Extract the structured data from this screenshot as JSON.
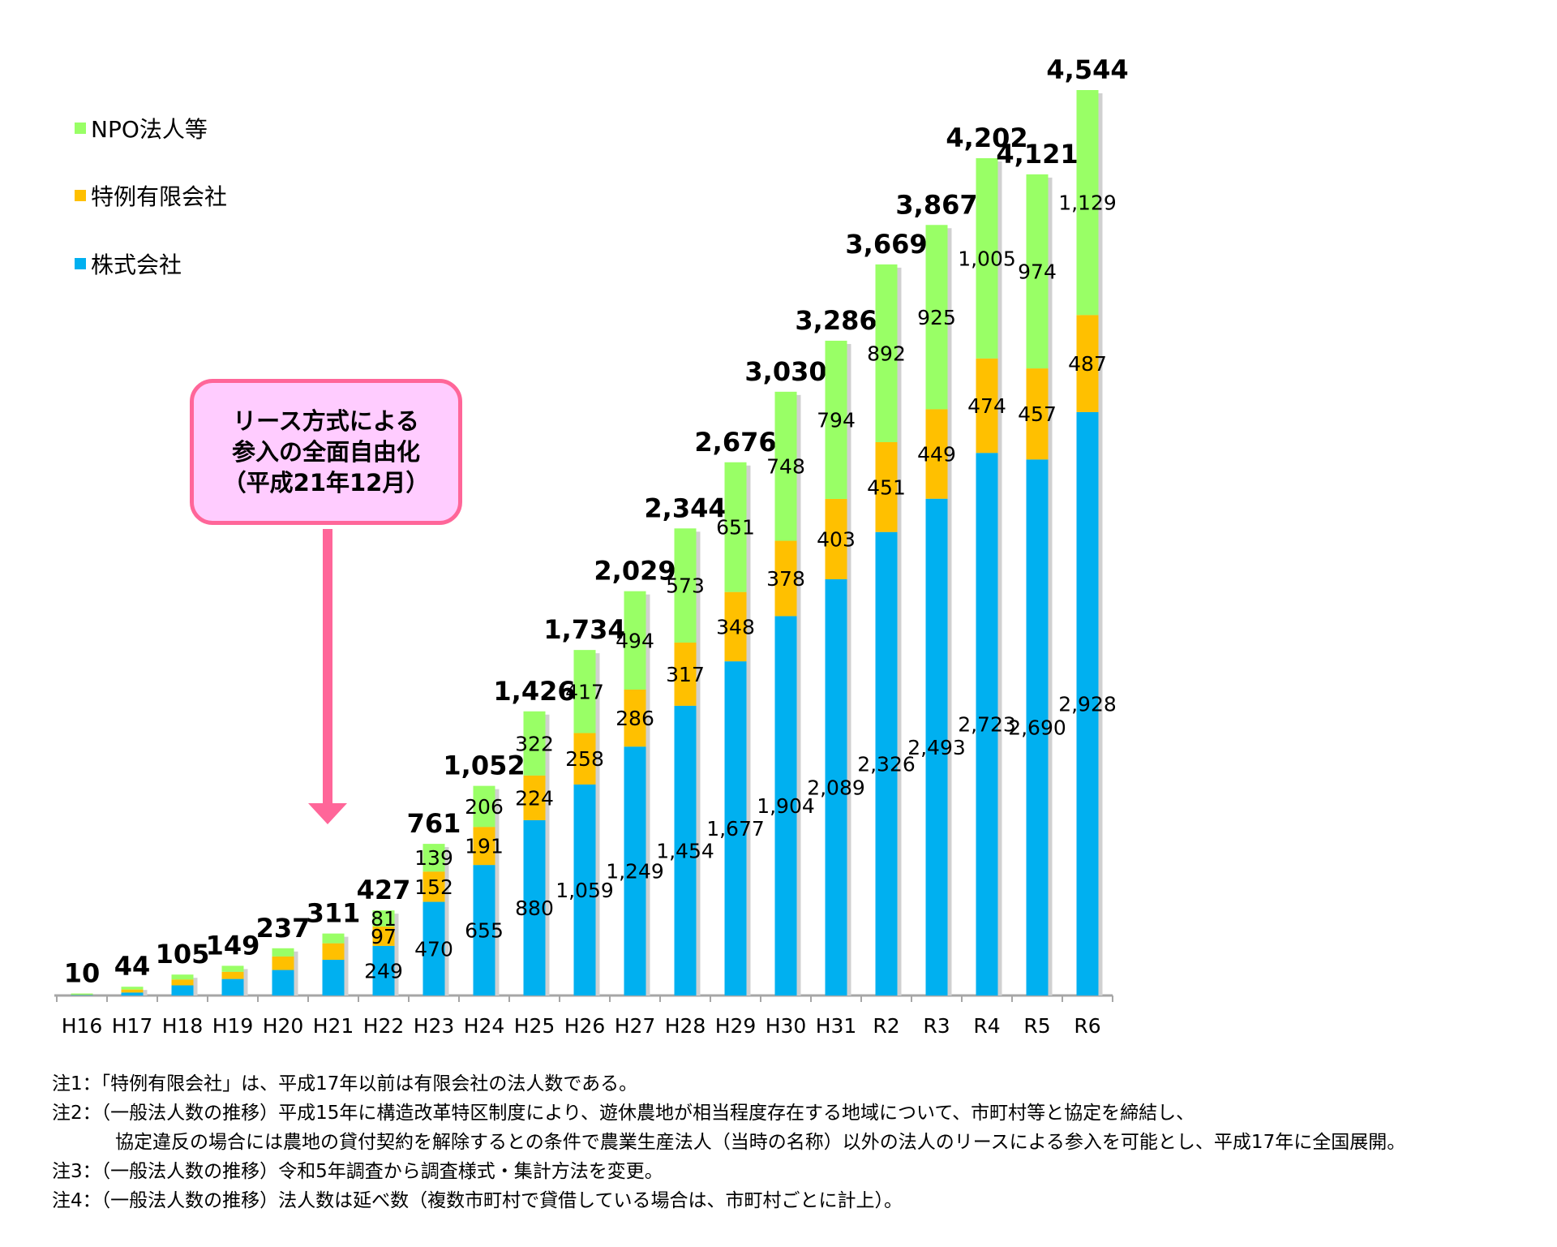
{
  "chart_data": {
    "type": "bar",
    "stacked": true,
    "categories": [
      "H16",
      "H17",
      "H18",
      "H19",
      "H20",
      "H21",
      "H22",
      "H23",
      "H24",
      "H25",
      "H26",
      "H27",
      "H28",
      "H29",
      "H30",
      "H31",
      "R2",
      "R3",
      "R4",
      "R5",
      "R6"
    ],
    "series": [
      {
        "name": "株式会社",
        "color": "#00b0f0",
        "values": [
          3,
          15,
          51,
          83,
          128,
          179,
          249,
          470,
          655,
          880,
          1059,
          1249,
          1454,
          1677,
          1904,
          2089,
          2326,
          2493,
          2723,
          2690,
          2928
        ],
        "labeled_from": "H22"
      },
      {
        "name": "特例有限会社",
        "color": "#ffc000",
        "values": [
          2,
          15,
          29,
          36,
          68,
          83,
          97,
          152,
          191,
          224,
          258,
          286,
          317,
          348,
          378,
          403,
          451,
          449,
          474,
          457,
          487
        ],
        "labeled_from": "H22"
      },
      {
        "name": "NPO法人等",
        "color": "#99ff66",
        "values": [
          5,
          14,
          25,
          30,
          41,
          49,
          81,
          139,
          206,
          322,
          417,
          494,
          573,
          651,
          748,
          794,
          892,
          925,
          1005,
          974,
          1129
        ],
        "labeled_from": "H22"
      }
    ],
    "totals": [
      10,
      44,
      105,
      149,
      237,
      311,
      427,
      761,
      1052,
      1426,
      1734,
      2029,
      2344,
      2676,
      3030,
      3286,
      3669,
      3867,
      4202,
      4121,
      4544
    ],
    "ylim": [
      0,
      4600
    ],
    "grid": false,
    "legend": "top-left"
  },
  "callout": {
    "lines": [
      "リース方式による",
      "参入の全面自由化",
      "（平成21年12月）"
    ],
    "color": "#ff6699",
    "fill": "#ffccff"
  },
  "notes": [
    "注1：「特例有限会社」は、平成17年以前は有限会社の法人数である。",
    "注2：（一般法人数の推移）平成15年に構造改革特区制度により、遊休農地が相当程度存在する地域について、市町村等と協定を締結し、",
    "協定違反の場合には農地の貸付契約を解除するとの条件で農業生産法人（当時の名称）以外の法人のリースによる参入を可能とし、平成17年に全国展開。",
    "注3：（一般法人数の推移）令和5年調査から調査様式・集計方法を変更。",
    "注4：（一般法人数の推移）法人数は延べ数（複数市町村で貸借している場合は、市町村ごとに計上）。"
  ]
}
